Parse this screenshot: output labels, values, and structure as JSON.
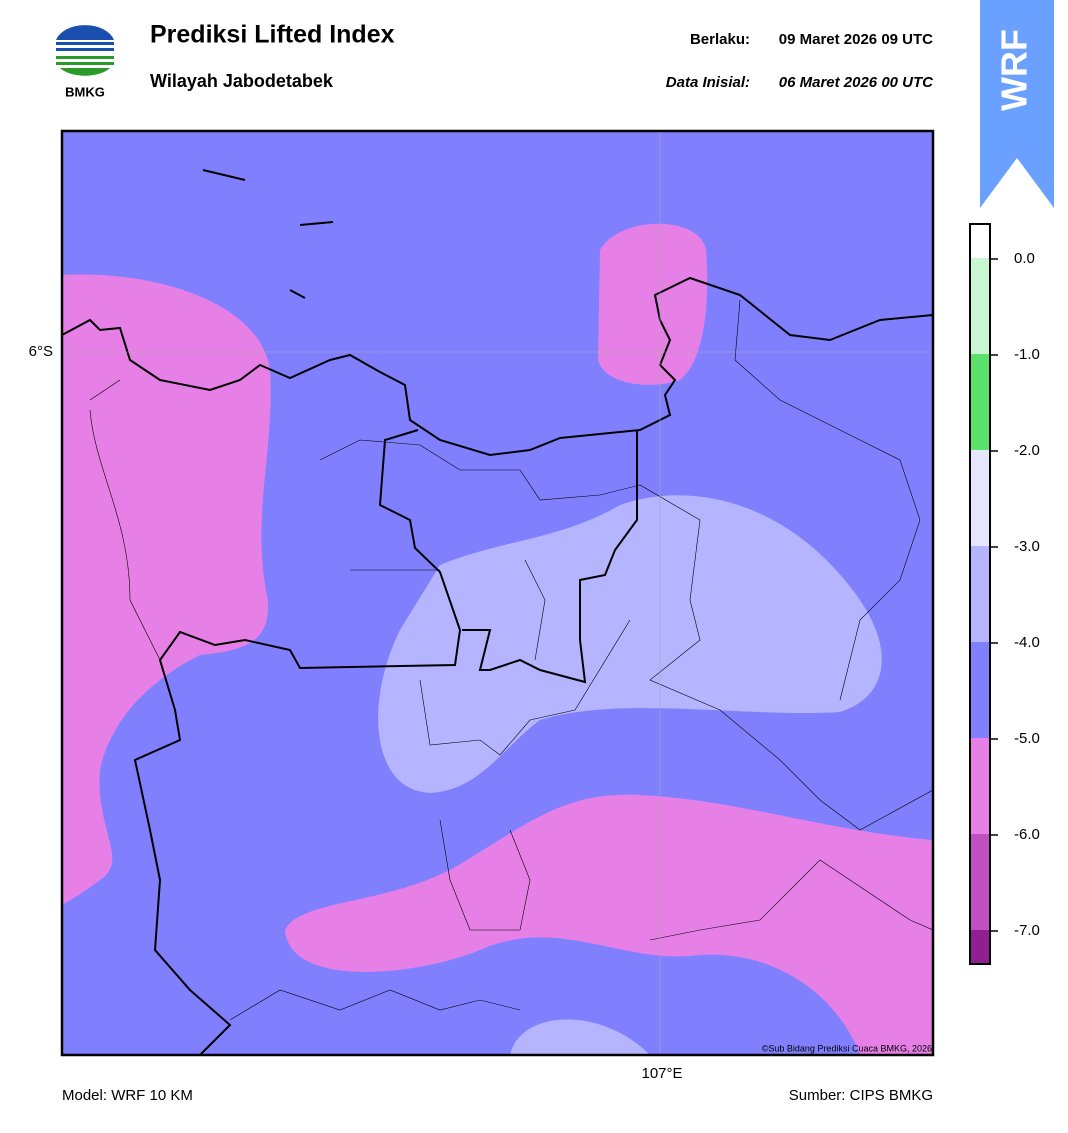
{
  "header": {
    "logo_text": "BMKG",
    "title": "Prediksi Lifted Index",
    "subtitle": "Wilayah Jabodetabek",
    "valid_label": "Berlaku:",
    "valid_value": "09 Maret 2026 09 UTC",
    "init_label": "Data Inisial:",
    "init_value": "06 Maret 2026 00 UTC",
    "badge": "WRF"
  },
  "map": {
    "lat_label": "6°S",
    "lon_label": "107°E",
    "credit": "©Sub Bidang Prediksi Cuaca BMKG, 2026"
  },
  "colorbar": {
    "labels": [
      "0.0",
      "-1.0",
      "-2.0",
      "-3.0",
      "-4.0",
      "-5.0",
      "-6.0",
      "-7.0"
    ]
  },
  "footer": {
    "model": "Model: WRF 10 KM",
    "source": "Sumber: CIPS BMKG"
  }
}
